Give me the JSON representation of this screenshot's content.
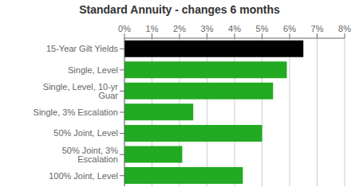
{
  "chart_data": {
    "type": "bar",
    "title": "Standard Annuity - changes 6 months",
    "orientation": "horizontal",
    "categories": [
      "100% Joint, Level",
      "50% Joint, 3% Escalation",
      "50% Joint, Level",
      "Single, 3% Escalation",
      "Single, Level, 10-yr Guar",
      "Single, Level",
      "15-Year Gilt Yields"
    ],
    "values": [
      4.3,
      2.1,
      5.0,
      2.5,
      5.4,
      5.9,
      6.5
    ],
    "colors": [
      "#22aa22",
      "#22aa22",
      "#22aa22",
      "#22aa22",
      "#22aa22",
      "#22aa22",
      "#000000"
    ],
    "xlim": [
      0,
      8
    ],
    "xticks": [
      {
        "value": 0,
        "label": "0%"
      },
      {
        "value": 1,
        "label": "1%"
      },
      {
        "value": 2,
        "label": "2%"
      },
      {
        "value": 3,
        "label": "3%"
      },
      {
        "value": 4,
        "label": "4%"
      },
      {
        "value": 5,
        "label": "5%"
      },
      {
        "value": 6,
        "label": "6%"
      },
      {
        "value": 7,
        "label": "7%"
      },
      {
        "value": 8,
        "label": "8%"
      }
    ],
    "grid": true
  }
}
